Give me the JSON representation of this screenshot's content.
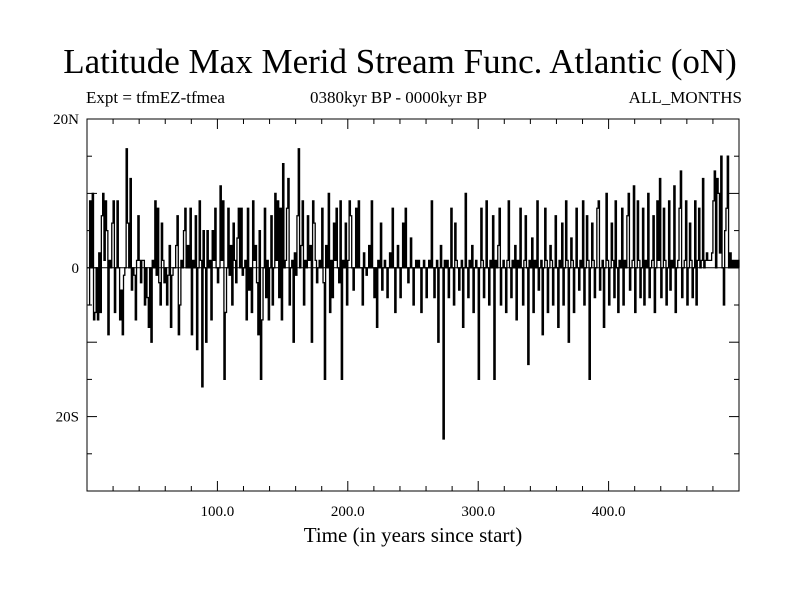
{
  "title": "Latitude Max Merid Stream Func. Atlantic (oN)",
  "subtitle_left": "Expt = tfmEZ-tfmea",
  "subtitle_center": "0380kyr BP - 0000kyr BP",
  "subtitle_right": "ALL_MONTHS",
  "chart_data": {
    "type": "line",
    "title": "Latitude Max Merid Stream Func. Atlantic (oN)",
    "xlabel": "Time (in years since start)",
    "ylabel": "",
    "xlim": [
      0,
      500
    ],
    "ylim": [
      -30,
      20
    ],
    "x_ticks": [
      100,
      200,
      300,
      400
    ],
    "x_tick_labels": [
      "100.0",
      "200.0",
      "300.0",
      "400.0"
    ],
    "y_ticks": [
      20,
      0,
      -20
    ],
    "y_tick_labels": [
      "20N",
      "0",
      "20S"
    ],
    "grid": false,
    "series": [
      {
        "name": "",
        "color": "#000000",
        "x_start": 1,
        "x_step": 1,
        "values": [
          -5,
          9,
          0,
          10,
          -7,
          -6,
          0,
          -7,
          2,
          -6,
          7,
          10,
          1,
          9,
          5,
          -9,
          1,
          0,
          6,
          9,
          -6,
          0,
          9,
          0,
          -7,
          -3,
          -9,
          -1,
          0,
          16,
          6,
          0,
          12,
          -3,
          0,
          -1,
          -7,
          1,
          7,
          1,
          -2,
          1,
          1,
          -5,
          0,
          -4,
          -8,
          0,
          -10,
          1,
          0,
          9,
          -1,
          8,
          -2,
          -5,
          6,
          1,
          -2,
          0,
          -5,
          -1,
          3,
          -8,
          -1,
          0,
          0,
          3,
          7,
          -9,
          -5,
          1,
          0,
          5,
          8,
          0,
          3,
          0,
          8,
          -9,
          1,
          0,
          7,
          -11,
          0,
          9,
          1,
          -16,
          5,
          0,
          -10,
          5,
          0,
          1,
          -7,
          5,
          1,
          8,
          0,
          -2,
          0,
          11,
          1,
          9,
          -15,
          -6,
          0,
          8,
          -1,
          3,
          -5,
          6,
          1,
          -2,
          4,
          8,
          0,
          8,
          -1,
          0,
          1,
          -7,
          8,
          -3,
          0,
          -6,
          9,
          1,
          3,
          -2,
          -9,
          5,
          -15,
          -7,
          0,
          8,
          -4,
          1,
          -7,
          0,
          7,
          -5,
          0,
          10,
          1,
          9,
          -4,
          8,
          -7,
          14,
          0,
          1,
          8,
          12,
          -5,
          0,
          1,
          -10,
          2,
          -1,
          7,
          16,
          0,
          3,
          9,
          -5,
          1,
          0,
          7,
          1,
          3,
          -10,
          9,
          6,
          1,
          -2,
          0,
          1,
          0,
          8,
          -2,
          -15,
          3,
          0,
          10,
          -6,
          1,
          -4,
          6,
          1,
          8,
          0,
          -2,
          9,
          -15,
          1,
          0,
          6,
          -5,
          1,
          9,
          7,
          0,
          -3,
          0,
          8,
          0,
          9,
          0,
          0,
          -5,
          2,
          0,
          -1,
          0,
          3,
          0,
          9,
          0,
          -4,
          0,
          -8,
          1,
          0,
          6,
          -3,
          0,
          1,
          0,
          -4,
          0,
          2,
          0,
          8,
          0,
          -6,
          0,
          3,
          0,
          -4,
          0,
          6,
          0,
          8,
          0,
          -2,
          0,
          4,
          0,
          -5,
          0,
          1,
          0,
          1,
          0,
          -6,
          0,
          1,
          0,
          -4,
          0,
          1,
          0,
          9,
          0,
          -4,
          0,
          1,
          -10,
          0,
          3,
          0,
          -23,
          1,
          0,
          1,
          -4,
          0,
          8,
          0,
          -5,
          6,
          1,
          0,
          -3,
          0,
          1,
          -8,
          0,
          10,
          0,
          -4,
          1,
          0,
          3,
          -6,
          0,
          1,
          0,
          -15,
          0,
          8,
          1,
          -4,
          0,
          9,
          0,
          -5,
          1,
          0,
          7,
          -15,
          1,
          0,
          3,
          8,
          -5,
          0,
          1,
          0,
          -6,
          1,
          9,
          0,
          -4,
          1,
          0,
          3,
          -7,
          1,
          0,
          8,
          0,
          -5,
          1,
          7,
          0,
          -13,
          1,
          0,
          4,
          -6,
          1,
          0,
          9,
          -3,
          0,
          1,
          -9,
          0,
          8,
          1,
          -6,
          0,
          3,
          1,
          -5,
          0,
          7,
          0,
          -8,
          1,
          0,
          6,
          -5,
          0,
          9,
          1,
          -10,
          0,
          4,
          1,
          -6,
          0,
          8,
          0,
          -3,
          1,
          0,
          9,
          -5,
          0,
          7,
          1,
          -15,
          0,
          6,
          1,
          -4,
          0,
          8,
          9,
          -3,
          0,
          1,
          -8,
          0,
          10,
          1,
          -5,
          0,
          6,
          1,
          -4,
          9,
          0,
          -6,
          1,
          0,
          8,
          -5,
          1,
          0,
          7,
          10,
          -3,
          0,
          1,
          11,
          -6,
          0,
          9,
          1,
          -4,
          0,
          8,
          -5,
          1,
          0,
          10,
          -4,
          0,
          1,
          7,
          -6,
          0,
          9,
          1,
          12,
          -4,
          0,
          8,
          1,
          -5,
          0,
          9,
          -3,
          1,
          0,
          11,
          -6,
          0,
          1,
          8,
          13,
          -4,
          0,
          1,
          9,
          -5,
          0,
          6,
          1,
          -4,
          0,
          9,
          -5,
          1,
          8,
          0,
          1,
          12,
          0,
          1,
          2,
          1,
          1,
          1,
          2,
          9,
          13,
          0,
          12,
          10,
          2,
          15,
          0,
          -5,
          5,
          8,
          15,
          0,
          2,
          0,
          1,
          0,
          1,
          0,
          1,
          0
        ]
      }
    ]
  }
}
